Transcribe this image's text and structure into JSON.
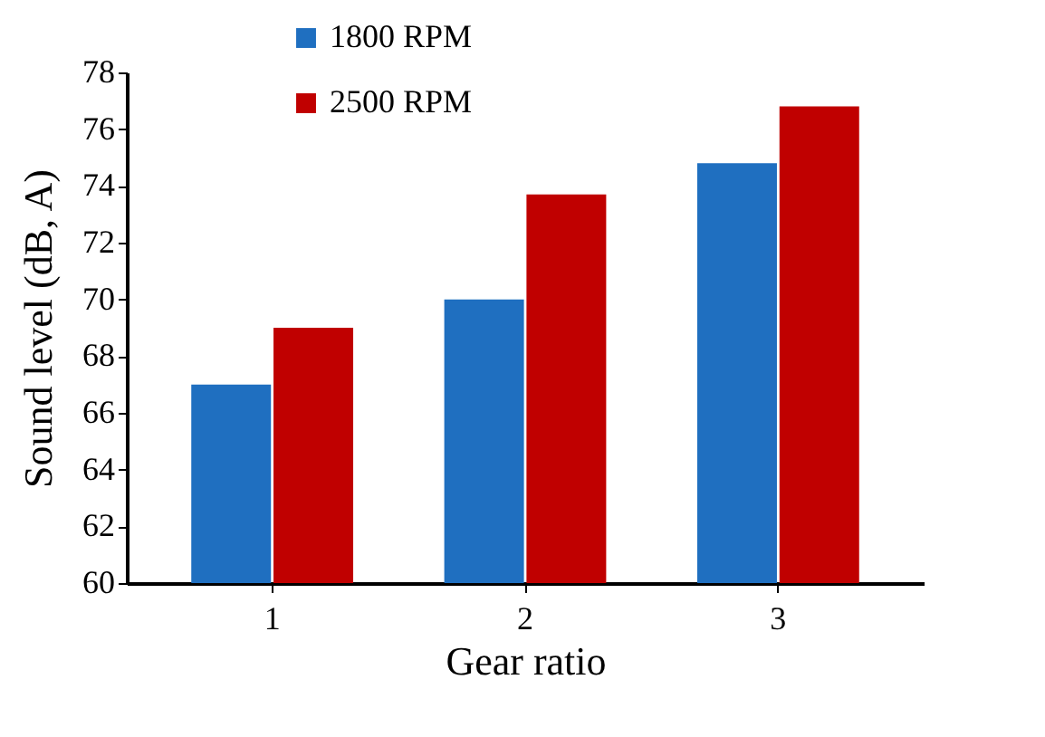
{
  "chart_data": {
    "type": "bar",
    "xlabel": "Gear ratio",
    "ylabel": "Sound level (dB, A)",
    "categories": [
      "1",
      "2",
      "3"
    ],
    "series": [
      {
        "name": "1800 RPM",
        "color": "#1f6fc0",
        "values": [
          67,
          70,
          74.8
        ]
      },
      {
        "name": "2500 RPM",
        "color": "#c00000",
        "values": [
          69,
          73.7,
          76.8
        ]
      }
    ],
    "ylim": [
      60,
      78
    ],
    "yticks": [
      60,
      62,
      64,
      66,
      68,
      70,
      72,
      74,
      76,
      78
    ],
    "grid": false,
    "legend": "top left"
  }
}
